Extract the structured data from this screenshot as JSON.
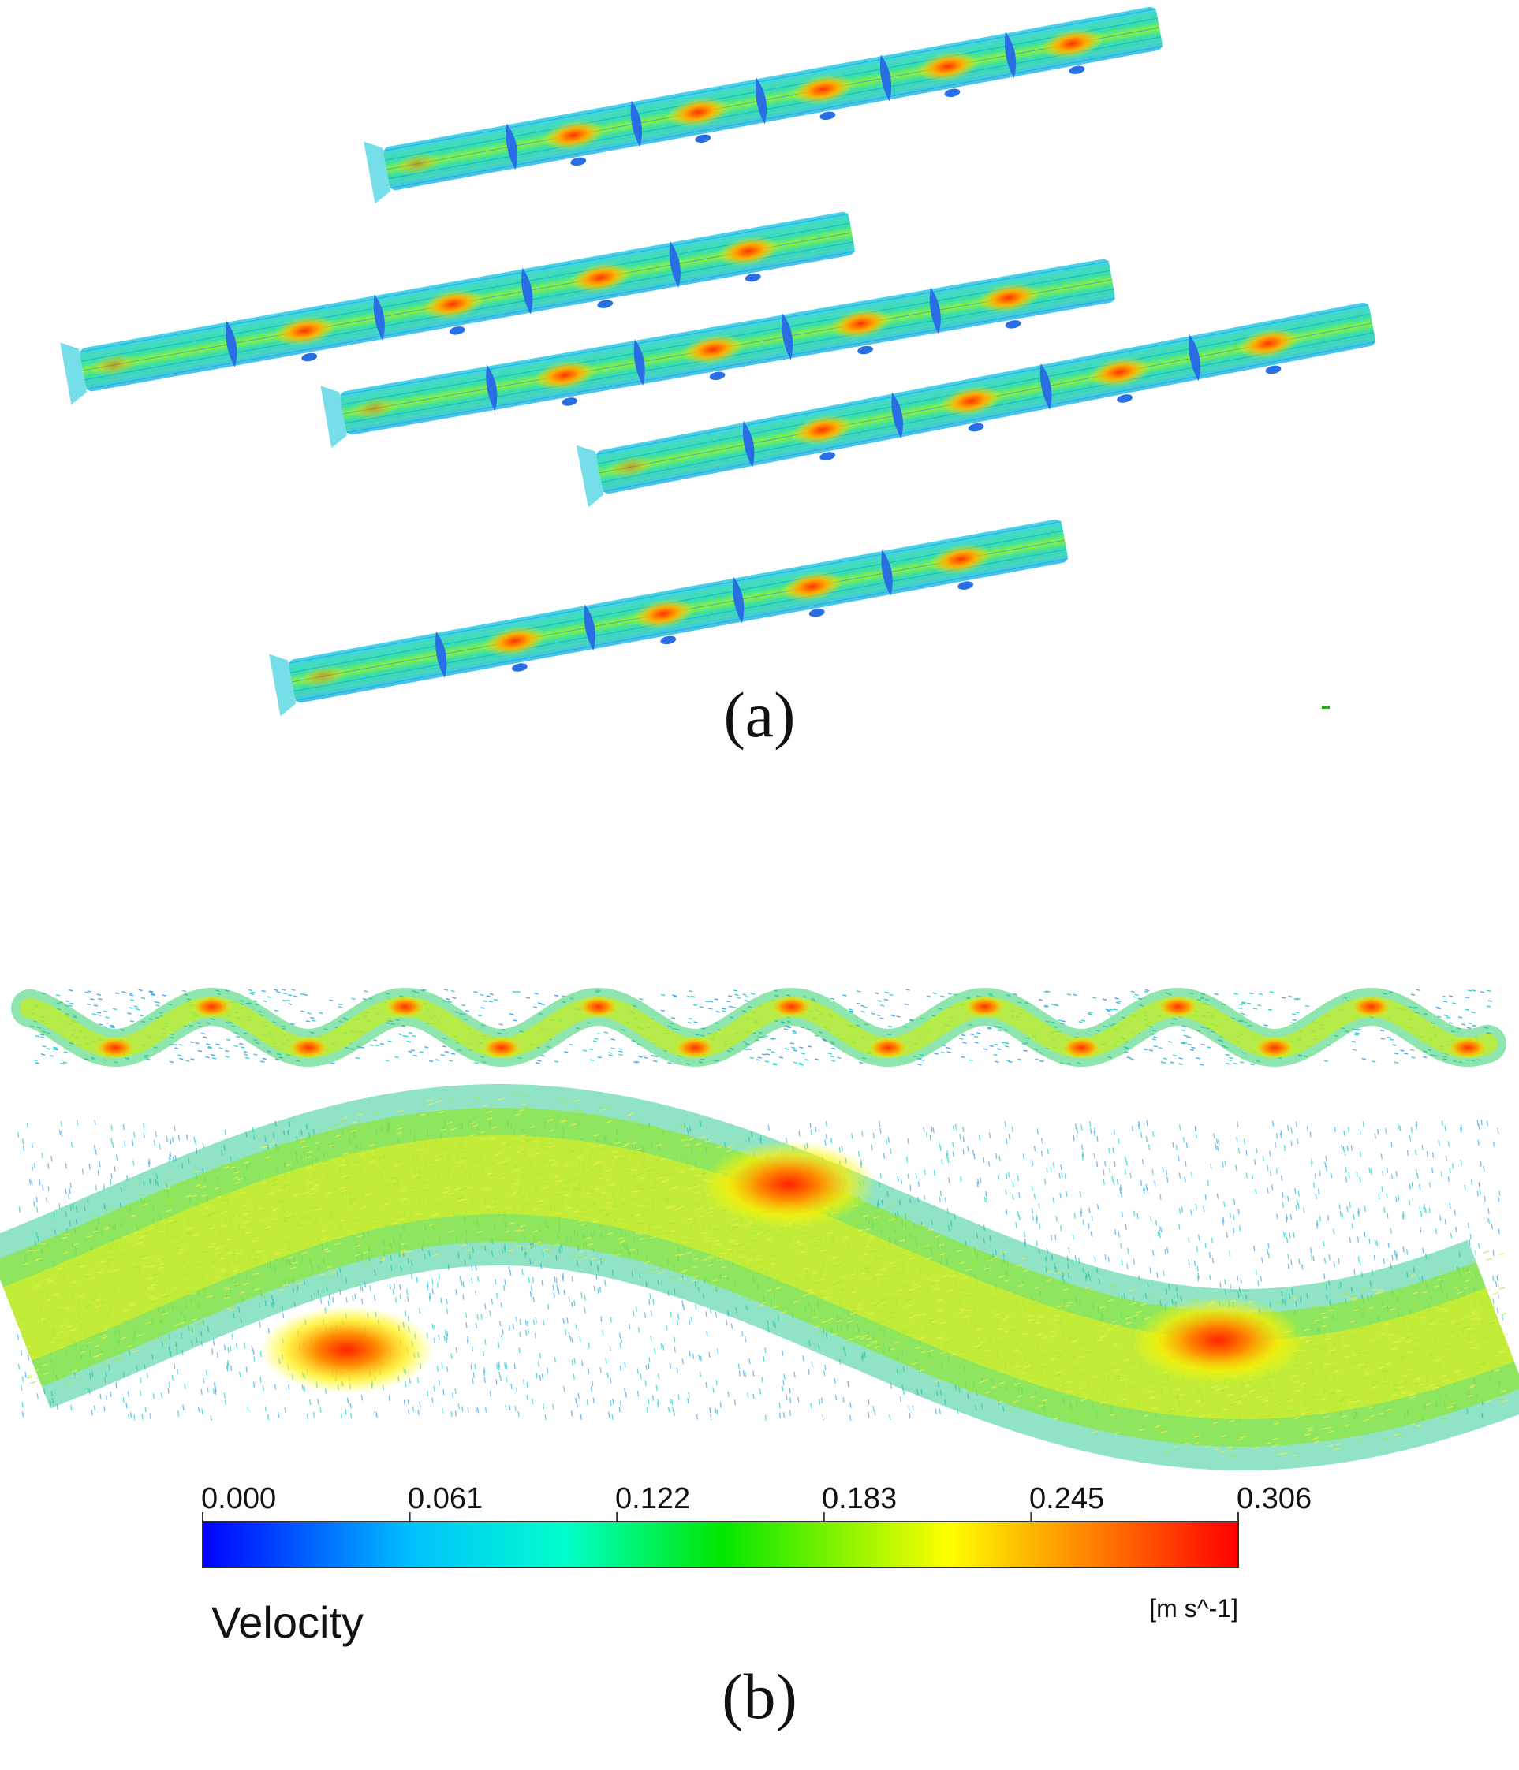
{
  "figure": {
    "caption_a": "(a)",
    "caption_b": "(b)"
  },
  "colorbar": {
    "title": "Velocity",
    "unit": "[m s^-1]",
    "ticks": [
      "0.000",
      "0.061",
      "0.122",
      "0.183",
      "0.245",
      "0.306"
    ],
    "min": 0.0,
    "max": 0.306,
    "colors": [
      "#0000ff",
      "#00bfff",
      "#00ffcc",
      "#00e600",
      "#ffff00",
      "#ff8000",
      "#ff0000"
    ]
  },
  "panel_a": {
    "tube_count": 5,
    "baffles_per_tube": [
      5,
      4,
      4,
      4,
      4
    ]
  },
  "panel_b": {
    "upper_strip_peaks": 15,
    "lower_strip_high_velocity_zones": 3
  }
}
